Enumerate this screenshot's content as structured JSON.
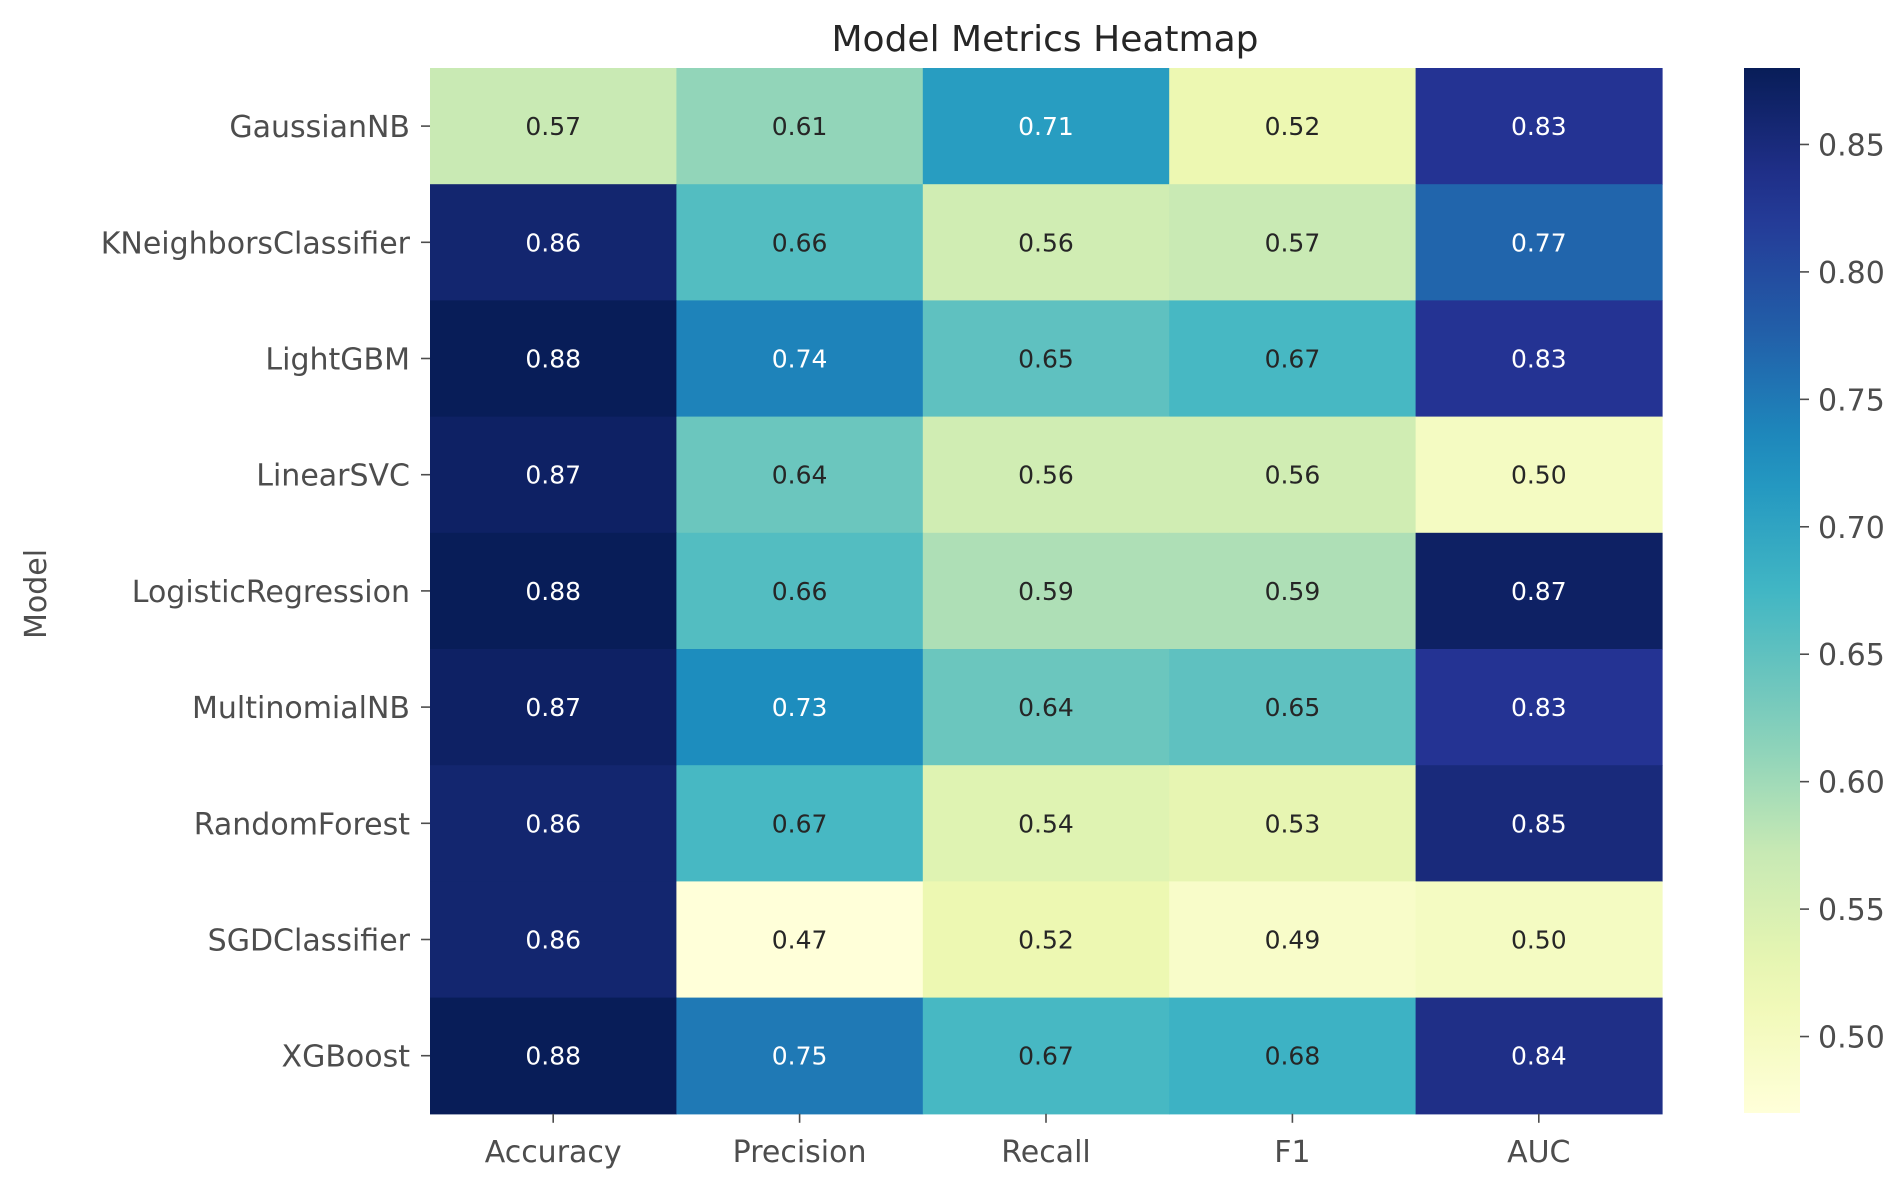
{
  "chart_data": {
    "type": "heatmap",
    "title": "Model Metrics Heatmap",
    "xlabel": "",
    "ylabel": "Model",
    "x_categories": [
      "Accuracy",
      "Precision",
      "Recall",
      "F1",
      "AUC"
    ],
    "y_categories": [
      "GaussianNB",
      "KNeighborsClassifier",
      "LightGBM",
      "LinearSVC",
      "LogisticRegression",
      "MultinomialNB",
      "RandomForest",
      "SGDClassifier",
      "XGBoost"
    ],
    "values": [
      [
        0.57,
        0.61,
        0.71,
        0.52,
        0.83
      ],
      [
        0.86,
        0.66,
        0.56,
        0.57,
        0.77
      ],
      [
        0.88,
        0.74,
        0.65,
        0.67,
        0.83
      ],
      [
        0.87,
        0.64,
        0.56,
        0.56,
        0.5
      ],
      [
        0.88,
        0.66,
        0.59,
        0.59,
        0.87
      ],
      [
        0.87,
        0.73,
        0.64,
        0.65,
        0.83
      ],
      [
        0.86,
        0.67,
        0.54,
        0.53,
        0.85
      ],
      [
        0.86,
        0.47,
        0.52,
        0.49,
        0.5
      ],
      [
        0.88,
        0.75,
        0.67,
        0.68,
        0.84
      ]
    ],
    "colorscale": "YlGnBu",
    "colorbar_range": [
      0.47,
      0.88
    ],
    "colorbar_ticks": [
      "0.50",
      "0.55",
      "0.60",
      "0.65",
      "0.70",
      "0.75",
      "0.80",
      "0.85"
    ],
    "legend_placement": "right colorbar"
  }
}
